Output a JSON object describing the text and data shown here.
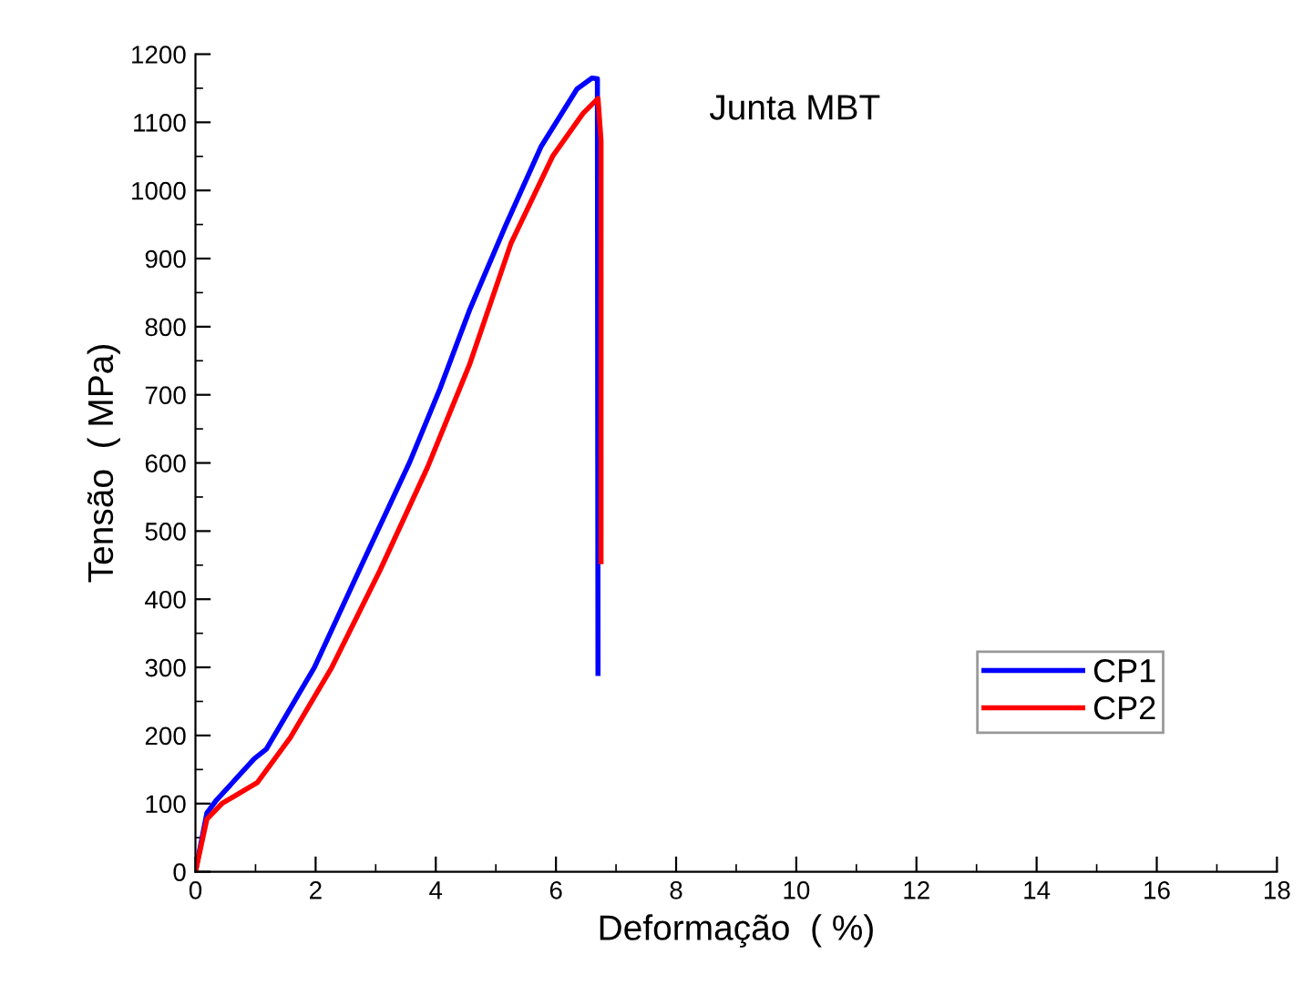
{
  "chart_data": {
    "type": "line",
    "xlabel": "Deformação  ( %)",
    "ylabel": "Tensão  ( MPa)",
    "annotations": [
      "Junta MBT"
    ],
    "xlim": [
      0,
      18
    ],
    "xticks": [
      0,
      2,
      4,
      6,
      8,
      10,
      12,
      14,
      16,
      18
    ],
    "ylim": [
      0,
      1200
    ],
    "yticks": [
      0,
      100,
      200,
      300,
      400,
      500,
      600,
      700,
      800,
      900,
      1000,
      1100,
      1200
    ],
    "grid": false,
    "legend": "bottom right",
    "line_style": "solid",
    "marker": "none",
    "series": [
      {
        "name": "CP1",
        "color": "#0000ff",
        "x": [
          0,
          0.19,
          0.34,
          0.98,
          1.18,
          1.98,
          2.77,
          3.57,
          4.07,
          4.56,
          5.16,
          5.75,
          6.35,
          6.6,
          6.69,
          6.7
        ],
        "values": [
          0,
          86,
          104,
          166,
          180,
          300,
          451,
          602,
          709,
          824,
          948,
          1064,
          1149,
          1165,
          1164,
          291
        ]
      },
      {
        "name": "CP2",
        "color": "#ff0000",
        "x": [
          0,
          0.19,
          0.44,
          1.03,
          1.58,
          2.27,
          3.07,
          3.86,
          4.56,
          5.25,
          5.95,
          6.45,
          6.7,
          6.75,
          6.75
        ],
        "values": [
          0,
          77,
          100,
          131,
          197,
          300,
          442,
          593,
          744,
          922,
          1051,
          1113,
          1135,
          1073,
          455
        ]
      }
    ]
  }
}
